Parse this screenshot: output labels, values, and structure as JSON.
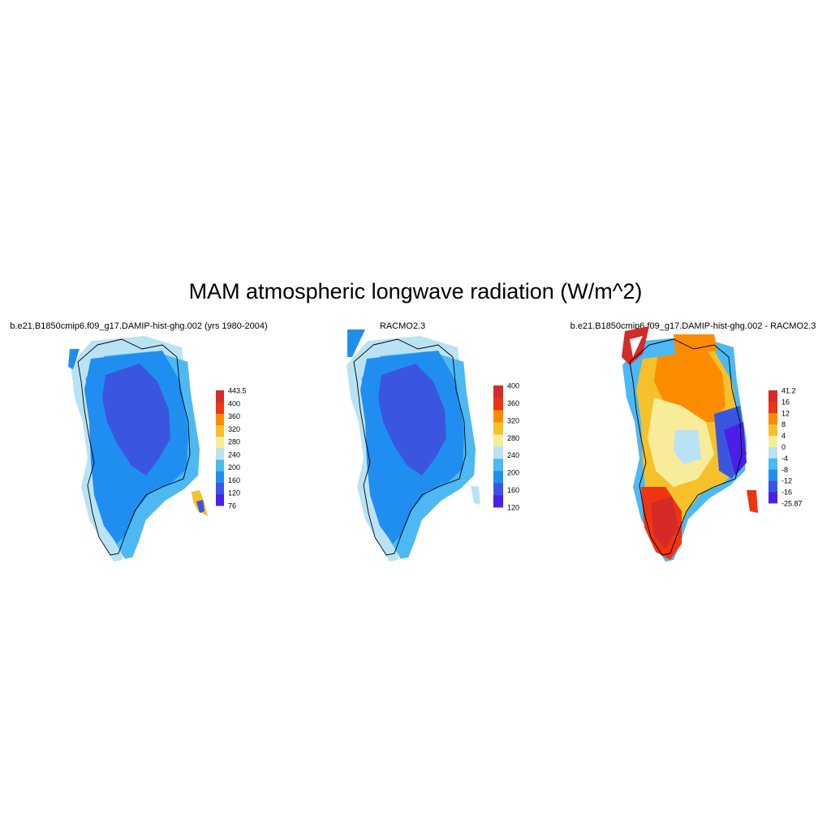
{
  "title": "MAM atmospheric longwave radiation (W/m^2)",
  "panels": [
    {
      "title": "b.e21.B1850cmip6.f09_g17.DAMIP-hist-ghg.002 (yrs 1980-2004)",
      "colorbar": {
        "colors": [
          "#4a1fe8",
          "#3a56e0",
          "#1f8ef0",
          "#4db8f2",
          "#b9e3f5",
          "#f7ec9a",
          "#f6c02a",
          "#fb8c00",
          "#ee3412",
          "#d42a2a"
        ],
        "labels": [
          "76",
          "120",
          "160",
          "200",
          "240",
          "280",
          "320",
          "360",
          "400",
          "443.5"
        ]
      }
    },
    {
      "title": "RACMO2.3",
      "colorbar": {
        "colors": [
          "#4a1fe8",
          "#3a56e0",
          "#1f8ef0",
          "#4db8f2",
          "#b9e3f5",
          "#f7ec9a",
          "#f6c02a",
          "#fb8c00",
          "#ee3412",
          "#d42a2a"
        ],
        "labels": [
          "120",
          "160",
          "200",
          "240",
          "280",
          "320",
          "360",
          "400"
        ]
      }
    },
    {
      "title": "b.e21.B1850cmip6.f09_g17.DAMIP-hist-ghg.002 - RACMO2.3",
      "colorbar": {
        "colors": [
          "#4a1fe8",
          "#3a56e0",
          "#1f8ef0",
          "#4db8f2",
          "#b9e3f5",
          "#f7ec9a",
          "#f6c02a",
          "#fb8c00",
          "#ee3412",
          "#d42a2a"
        ],
        "labels": [
          "-25.87",
          "-16",
          "-12",
          "-8",
          "-4",
          "0",
          "4",
          "8",
          "12",
          "16",
          "41.2"
        ]
      }
    }
  ]
}
